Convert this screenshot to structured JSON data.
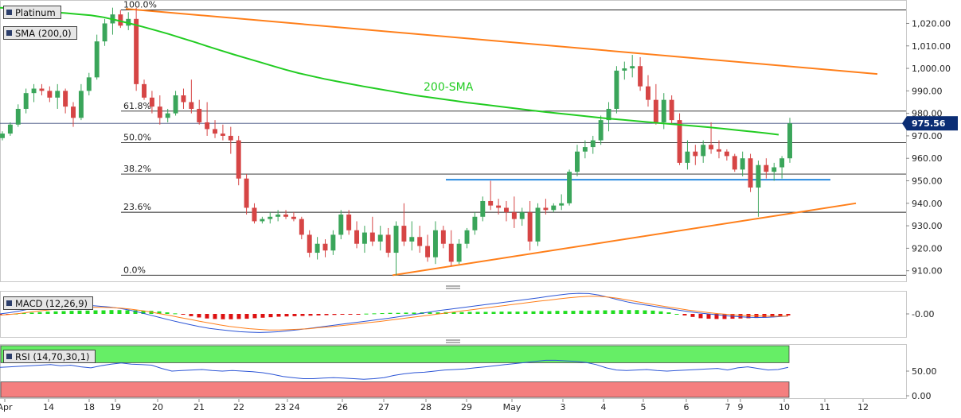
{
  "panel": {
    "symbol": "Platinum",
    "sma_legend": "SMA (200,0)",
    "macd_legend": "MACD (12,26,9)",
    "rsi_legend": "RSI (14,70,30,1)",
    "sma_annotation": "200-SMA",
    "price_badge": "975.56",
    "price_badge_color": "#0b2d74",
    "sma_color": "#22cc22",
    "trendline_color": "#ff7f1a",
    "support_color": "#2a8be0",
    "up_color": "#3aa55a",
    "down_color": "#d64545"
  },
  "chart_data": {
    "type": "candlestick",
    "price_axis": {
      "ticks": [
        "1,020.00",
        "1,010.00",
        "1,000.00",
        "990.00",
        "980.00",
        "970.00",
        "960.00",
        "950.00",
        "940.00",
        "930.00",
        "920.00",
        "910.00"
      ],
      "ylim": [
        906,
        1029
      ]
    },
    "x_axis_labels": [
      "Apr",
      "14",
      "18",
      "19",
      "20",
      "21",
      "22",
      "23 24",
      "26",
      "27",
      "28",
      "29",
      "May",
      "3",
      "4",
      "5",
      "6",
      "7",
      "9",
      "10",
      "11",
      "12"
    ],
    "fibonacci": [
      {
        "label": "100.0%",
        "value": 1026
      },
      {
        "label": "61.8%",
        "value": 981
      },
      {
        "label": "50.0%",
        "value": 967
      },
      {
        "label": "38.2%",
        "value": 953
      },
      {
        "label": "23.6%",
        "value": 936
      },
      {
        "label": "0.0%",
        "value": 908
      }
    ],
    "current_price": 975.56,
    "candles": [
      [
        969,
        972,
        968,
        971
      ],
      [
        971,
        976,
        970,
        975
      ],
      [
        975,
        984,
        974,
        982
      ],
      [
        982,
        991,
        980,
        989
      ],
      [
        989,
        993,
        985,
        991
      ],
      [
        991,
        993,
        988,
        990
      ],
      [
        990,
        992,
        985,
        987
      ],
      [
        987,
        993,
        982,
        990
      ],
      [
        990,
        991,
        980,
        983
      ],
      [
        983,
        985,
        974,
        978
      ],
      [
        978,
        993,
        977,
        990
      ],
      [
        990,
        998,
        988,
        996
      ],
      [
        996,
        1015,
        995,
        1012
      ],
      [
        1012,
        1022,
        1010,
        1020
      ],
      [
        1020,
        1027,
        1015,
        1024
      ],
      [
        1024,
        1026,
        1018,
        1019
      ],
      [
        1019,
        1025,
        1017,
        1022
      ],
      [
        1022,
        1027,
        990,
        993
      ],
      [
        993,
        995,
        986,
        987
      ],
      [
        987,
        990,
        980,
        983
      ],
      [
        983,
        988,
        975,
        978
      ],
      [
        978,
        982,
        976,
        980
      ],
      [
        980,
        990,
        979,
        988
      ],
      [
        988,
        991,
        982,
        985
      ],
      [
        985,
        995,
        980,
        982
      ],
      [
        982,
        986,
        975,
        976
      ],
      [
        976,
        985,
        970,
        973
      ],
      [
        973,
        977,
        969,
        971
      ],
      [
        971,
        975,
        968,
        970
      ],
      [
        970,
        974,
        962,
        968
      ],
      [
        968,
        970,
        948,
        951
      ],
      [
        951,
        953,
        935,
        938
      ],
      [
        938,
        940,
        931,
        932
      ],
      [
        932,
        934,
        931,
        933
      ],
      [
        933,
        936,
        931,
        934
      ],
      [
        934,
        937,
        932,
        935
      ],
      [
        935,
        937,
        933,
        934
      ],
      [
        934,
        936,
        932,
        933
      ],
      [
        933,
        934,
        924,
        926
      ],
      [
        926,
        928,
        916,
        918
      ],
      [
        918,
        925,
        915,
        922
      ],
      [
        922,
        924,
        916,
        919
      ],
      [
        919,
        928,
        917,
        926
      ],
      [
        926,
        937,
        924,
        935
      ],
      [
        935,
        937,
        926,
        928
      ],
      [
        928,
        932,
        920,
        922
      ],
      [
        922,
        930,
        918,
        927
      ],
      [
        927,
        934,
        921,
        923
      ],
      [
        923,
        930,
        919,
        926
      ],
      [
        926,
        929,
        916,
        918
      ],
      [
        918,
        932,
        908,
        930
      ],
      [
        930,
        940,
        921,
        923
      ],
      [
        923,
        932,
        919,
        925
      ],
      [
        925,
        930,
        918,
        921
      ],
      [
        921,
        926,
        914,
        916
      ],
      [
        916,
        932,
        913,
        928
      ],
      [
        928,
        930,
        920,
        922
      ],
      [
        922,
        928,
        912,
        914
      ],
      [
        914,
        924,
        913,
        922
      ],
      [
        922,
        929,
        920,
        928
      ],
      [
        928,
        936,
        926,
        934
      ],
      [
        934,
        943,
        932,
        941
      ],
      [
        941,
        950,
        937,
        939
      ],
      [
        939,
        942,
        935,
        938
      ],
      [
        938,
        941,
        932,
        936
      ],
      [
        936,
        943,
        929,
        933
      ],
      [
        933,
        938,
        930,
        936
      ],
      [
        936,
        941,
        919,
        923
      ],
      [
        923,
        940,
        921,
        938
      ],
      [
        938,
        942,
        935,
        937
      ],
      [
        937,
        940,
        936,
        939
      ],
      [
        939,
        944,
        937,
        940
      ],
      [
        940,
        955,
        939,
        954
      ],
      [
        954,
        966,
        952,
        963
      ],
      [
        963,
        968,
        960,
        965
      ],
      [
        965,
        970,
        962,
        968
      ],
      [
        968,
        979,
        966,
        977
      ],
      [
        977,
        985,
        972,
        982
      ],
      [
        982,
        1001,
        980,
        999
      ],
      [
        999,
        1003,
        995,
        1000
      ],
      [
        1000,
        1006,
        996,
        1001
      ],
      [
        1001,
        1005,
        990,
        992
      ],
      [
        992,
        997,
        983,
        986
      ],
      [
        986,
        993,
        975,
        976
      ],
      [
        976,
        989,
        973,
        986
      ],
      [
        986,
        988,
        975,
        977
      ],
      [
        977,
        980,
        957,
        958
      ],
      [
        958,
        968,
        955,
        963
      ],
      [
        963,
        966,
        957,
        961
      ],
      [
        961,
        968,
        958,
        966
      ],
      [
        966,
        976,
        962,
        964
      ],
      [
        964,
        968,
        960,
        963
      ],
      [
        963,
        964,
        959,
        961
      ],
      [
        961,
        962,
        954,
        955
      ],
      [
        955,
        963,
        952,
        960
      ],
      [
        960,
        962,
        945,
        947
      ],
      [
        947,
        959,
        934,
        957
      ],
      [
        957,
        960,
        951,
        954
      ],
      [
        954,
        958,
        950,
        956
      ],
      [
        956,
        961,
        951,
        960
      ],
      [
        960,
        978,
        958,
        975.56
      ]
    ],
    "sma200": [
      1027,
      1026.7,
      1026.2,
      1025.6,
      1025,
      1024.6,
      1024.1,
      1023.6,
      1022.7,
      1021.4,
      1020,
      1018.5,
      1016.9,
      1015.3,
      1013.5,
      1011.7,
      1009.8,
      1008,
      1006.2,
      1004.5,
      1002.8,
      1001.1,
      999.4,
      997.9,
      996.6,
      995.3,
      994.2,
      993.1,
      992,
      991,
      990,
      989,
      988,
      987.2,
      986.4,
      985.6,
      984.8,
      984.1,
      983.4,
      982.7,
      982,
      981.3,
      980.6,
      980,
      979.4,
      978.8,
      978.2,
      977.6,
      977.1,
      976.6,
      976.1,
      975.6,
      975.1,
      974.6,
      974.1,
      973.6,
      973,
      972.4,
      971.8,
      971.2,
      970.5
    ],
    "trendlines": [
      {
        "name": "descending resistance",
        "from": [
          1026.5
        ],
        "to": [
          997.5
        ]
      },
      {
        "name": "ascending support",
        "from": [
          908
        ],
        "to": [
          940
        ]
      },
      {
        "name": "horizontal support",
        "value": 950.5
      }
    ],
    "macd": {
      "zero_tick": "-0.00",
      "histogram": [
        -0.3,
        -0.2,
        0.1,
        0.3,
        0.5,
        0.7,
        0.9,
        1,
        1.1,
        1.2,
        1.3,
        1.3,
        1.4,
        1.4,
        1.5,
        1.5,
        1.4,
        1.4,
        1.3,
        1.2,
        1,
        0.6,
        0.2,
        -0.3,
        -0.9,
        -1.4,
        -1.8,
        -2,
        -2.1,
        -2.1,
        -2,
        -1.9,
        -1.7,
        -1.5,
        -1.3,
        -1.1,
        -1,
        -0.9,
        -0.8,
        -0.7,
        -0.6,
        -0.5,
        -0.4,
        -0.3,
        -0.2,
        -0.1,
        0.1,
        0.2,
        0.3,
        0.4,
        0.4,
        0.5,
        0.5,
        0.6,
        0.6,
        0.6,
        0.7,
        0.7,
        0.7,
        0.8,
        0.8,
        0.8,
        0.8,
        0.9,
        0.9,
        0.9,
        1,
        1,
        1.1,
        1.1,
        1.2,
        1.2,
        1.2,
        1.3,
        1.3,
        1.4,
        1.4,
        1.4,
        1.5,
        1.5,
        1.5,
        1.4,
        1.3,
        1,
        0.6,
        0,
        -0.6,
        -1.2,
        -1.7,
        -1.9,
        -2,
        -2,
        -1.9,
        -1.8,
        -1.7,
        -1.6,
        -1.5,
        -1.3,
        -1,
        -0.6
      ],
      "macd_line": [
        0,
        0.5,
        1.2,
        2,
        2.6,
        3.1,
        3.5,
        3.6,
        3.5,
        3.3,
        3,
        2.7,
        2.2,
        1.5,
        0.6,
        -0.4,
        -1.4,
        -2.4,
        -3.3,
        -4.2,
        -5,
        -5.7,
        -6.2,
        -6.6,
        -7,
        -7.2,
        -7.3,
        -7.2,
        -7,
        -6.6,
        -6.2,
        -5.7,
        -5.2,
        -4.7,
        -4.2,
        -3.7,
        -3.2,
        -2.7,
        -2.2,
        -1.7,
        -1.1,
        -0.5,
        0.1,
        0.7,
        1.3,
        1.8,
        2.3,
        2.8,
        3.3,
        3.8,
        4.3,
        4.8,
        5.3,
        5.8,
        6.3,
        6.9,
        7.4,
        7.9,
        8.1,
        8,
        7.4,
        6.5,
        5.5,
        4.6,
        3.9,
        3.3,
        2.7,
        2.1,
        1.5,
        0.9,
        0.4,
        0,
        -0.4,
        -0.8,
        -1.1,
        -1.3,
        -1.4,
        -1.3,
        -1.1,
        -0.8
      ],
      "signal_line": [
        -0.5,
        -0.2,
        0.2,
        0.7,
        1.2,
        1.6,
        2,
        2.3,
        2.5,
        2.6,
        2.6,
        2.5,
        2.3,
        1.9,
        1.4,
        0.8,
        0.1,
        -0.6,
        -1.4,
        -2.1,
        -2.9,
        -3.6,
        -4.3,
        -4.9,
        -5.4,
        -5.8,
        -6.1,
        -6.3,
        -6.3,
        -6.2,
        -6,
        -5.8,
        -5.4,
        -5.1,
        -4.7,
        -4.3,
        -3.9,
        -3.4,
        -3,
        -2.5,
        -2,
        -1.5,
        -1,
        -0.5,
        0,
        0.5,
        1,
        1.5,
        2,
        2.5,
        3,
        3.5,
        4,
        4.5,
        5,
        5.4,
        5.9,
        6.3,
        6.7,
        6.9,
        6.9,
        6.6,
        6.1,
        5.4,
        4.7,
        4,
        3.3,
        2.7,
        2.1,
        1.5,
        1,
        0.5,
        0.1,
        -0.2,
        -0.5,
        -0.7,
        -0.8,
        -0.9,
        -0.9,
        -0.8
      ]
    },
    "rsi": {
      "ticks": [
        "50.00",
        "0.00"
      ],
      "overbought": 70,
      "oversold": 30,
      "values": [
        57,
        58,
        59,
        60,
        61,
        62,
        60,
        61,
        58,
        56,
        60,
        63,
        65,
        63,
        62,
        61,
        55,
        50,
        51,
        52,
        53,
        51,
        50,
        51,
        50,
        49,
        47,
        44,
        40,
        38,
        36,
        36,
        37,
        38,
        37,
        36,
        35,
        36,
        38,
        42,
        45,
        47,
        48,
        50,
        52,
        53,
        54,
        56,
        58,
        60,
        62,
        64,
        66,
        68,
        70,
        70,
        69,
        68,
        66,
        62,
        56,
        52,
        51,
        52,
        53,
        51,
        50,
        51,
        52,
        53,
        54,
        55,
        52,
        56,
        58,
        55,
        52,
        53,
        57
      ]
    }
  }
}
